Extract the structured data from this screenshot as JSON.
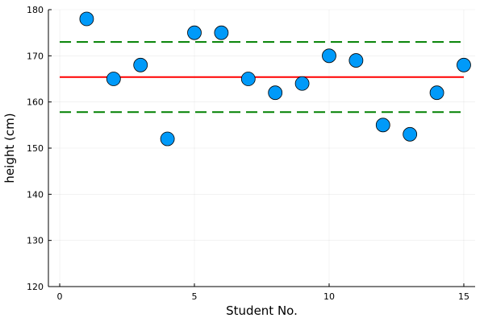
{
  "chart_data": {
    "type": "scatter",
    "title": "",
    "xlabel": "Student No.",
    "ylabel": "height (cm)",
    "xlim": [
      -0.42,
      15.42
    ],
    "ylim": [
      120,
      180
    ],
    "x_ticks": [
      0,
      5,
      10,
      15
    ],
    "y_ticks": [
      120,
      130,
      140,
      150,
      160,
      170,
      180
    ],
    "x_tick_labels": [
      "0",
      "5",
      "10",
      "15"
    ],
    "y_tick_labels": [
      "120",
      "130",
      "140",
      "150",
      "160",
      "170",
      "180"
    ],
    "grid": true,
    "legend": "none",
    "series": [
      {
        "type": "scatter",
        "color": "#009af9",
        "x": [
          1,
          2,
          3,
          4,
          5,
          6,
          7,
          8,
          9,
          10,
          11,
          12,
          13,
          14,
          15
        ],
        "y": [
          178,
          165,
          168,
          152,
          175,
          175,
          165,
          162,
          164,
          170,
          169,
          155,
          153,
          162,
          168
        ]
      },
      {
        "type": "hline",
        "style": "solid",
        "color": "#ff0000",
        "x": [
          0,
          15
        ],
        "y": 165.4
      },
      {
        "type": "hline",
        "style": "dashed",
        "color": "#008000",
        "x": [
          0,
          15
        ],
        "y": 173
      },
      {
        "type": "hline",
        "style": "dashed",
        "color": "#008000",
        "x": [
          0,
          15
        ],
        "y": 157.8
      }
    ]
  }
}
